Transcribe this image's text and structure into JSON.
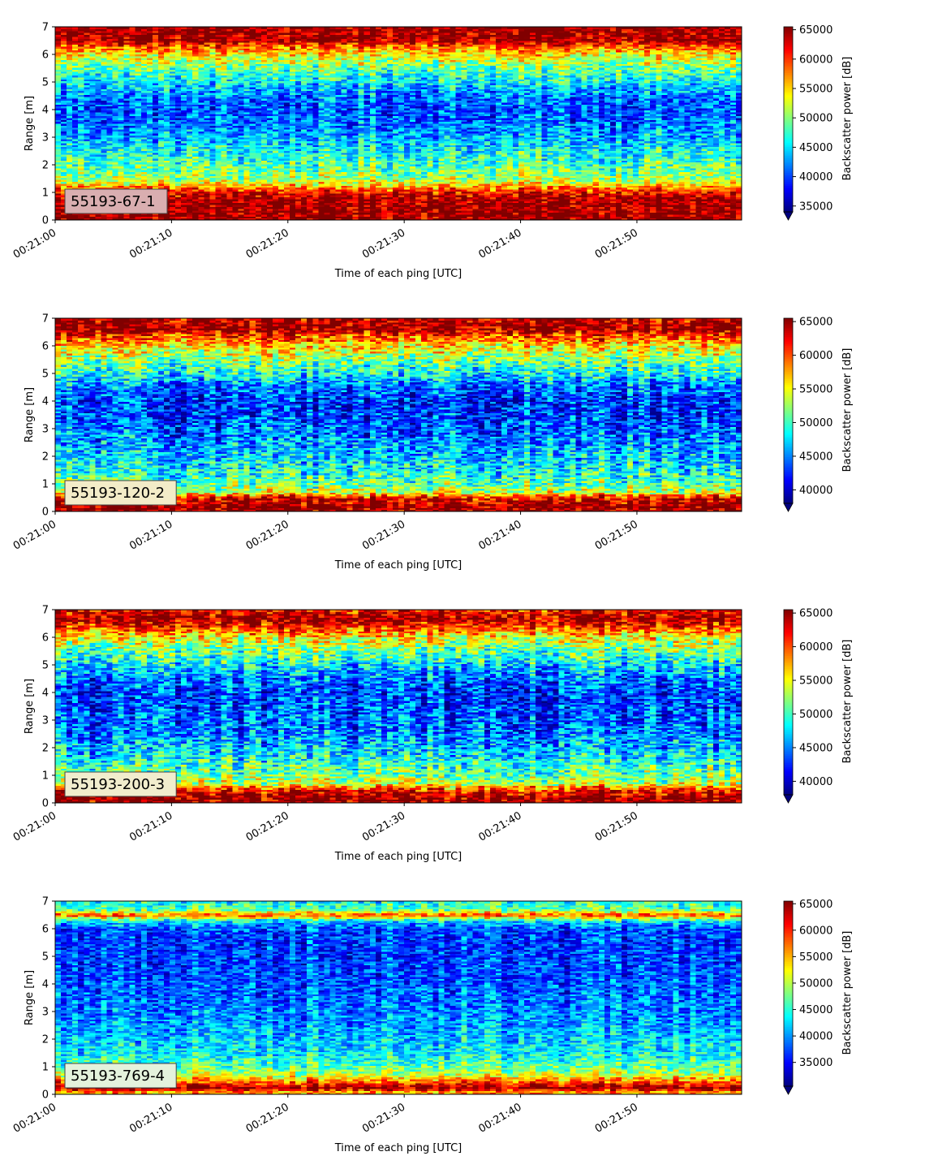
{
  "chart_data": [
    {
      "type": "heatmap",
      "label": "55193-67-1",
      "label_bg": "#d9aeb0",
      "xlabel": "Time of each ping [UTC]",
      "ylabel": "Range [m]",
      "xlim": [
        "00:21:00",
        "00:21:59"
      ],
      "ylim": [
        0,
        7
      ],
      "xticks": [
        "00:21:00",
        "00:21:10",
        "00:21:20",
        "00:21:30",
        "00:21:40",
        "00:21:50"
      ],
      "yticks": [
        0,
        1,
        2,
        3,
        4,
        5,
        6,
        7
      ],
      "colorbar": {
        "label": "Backscatter power [dB]",
        "min": 34000,
        "max": 65500,
        "ticks": [
          35000,
          40000,
          45000,
          50000,
          55000,
          60000,
          65000
        ]
      },
      "profile": [
        {
          "range": 0.2,
          "value": 65000
        },
        {
          "range": 0.5,
          "value": 65000
        },
        {
          "range": 0.8,
          "value": 64500
        },
        {
          "range": 1.0,
          "value": 62000
        },
        {
          "range": 1.2,
          "value": 57000
        },
        {
          "range": 1.5,
          "value": 51000
        },
        {
          "range": 2.0,
          "value": 48500
        },
        {
          "range": 2.5,
          "value": 46000
        },
        {
          "range": 3.0,
          "value": 43500
        },
        {
          "range": 3.5,
          "value": 41500
        },
        {
          "range": 4.0,
          "value": 40500
        },
        {
          "range": 4.5,
          "value": 42000
        },
        {
          "range": 5.0,
          "value": 45500
        },
        {
          "range": 5.5,
          "value": 49000
        },
        {
          "range": 6.0,
          "value": 54000
        },
        {
          "range": 6.3,
          "value": 59000
        },
        {
          "range": 6.5,
          "value": 64500
        },
        {
          "range": 7.0,
          "value": 65000
        }
      ]
    },
    {
      "type": "heatmap",
      "label": "55193-120-2",
      "label_bg": "#f3ecc8",
      "xlabel": "Time of each ping [UTC]",
      "ylabel": "Range [m]",
      "xlim": [
        "00:21:00",
        "00:21:59"
      ],
      "ylim": [
        0,
        7
      ],
      "xticks": [
        "00:21:00",
        "00:21:10",
        "00:21:20",
        "00:21:30",
        "00:21:40",
        "00:21:50"
      ],
      "yticks": [
        0,
        1,
        2,
        3,
        4,
        5,
        6,
        7
      ],
      "colorbar": {
        "label": "Backscatter power [dB]",
        "min": 38000,
        "max": 65500,
        "ticks": [
          40000,
          45000,
          50000,
          55000,
          60000,
          65000
        ]
      },
      "profile": [
        {
          "range": 0.2,
          "value": 65000
        },
        {
          "range": 0.5,
          "value": 63000
        },
        {
          "range": 0.7,
          "value": 54000
        },
        {
          "range": 1.0,
          "value": 51000
        },
        {
          "range": 1.5,
          "value": 48500
        },
        {
          "range": 2.0,
          "value": 47000
        },
        {
          "range": 2.5,
          "value": 45500
        },
        {
          "range": 3.0,
          "value": 44000
        },
        {
          "range": 3.5,
          "value": 43000
        },
        {
          "range": 4.0,
          "value": 42500
        },
        {
          "range": 4.5,
          "value": 44500
        },
        {
          "range": 5.0,
          "value": 48500
        },
        {
          "range": 5.5,
          "value": 52000
        },
        {
          "range": 6.0,
          "value": 56000
        },
        {
          "range": 6.4,
          "value": 61000
        },
        {
          "range": 6.6,
          "value": 65000
        },
        {
          "range": 7.0,
          "value": 64000
        }
      ]
    },
    {
      "type": "heatmap",
      "label": "55193-200-3",
      "label_bg": "#f1edcd",
      "xlabel": "Time of each ping [UTC]",
      "ylabel": "Range [m]",
      "xlim": [
        "00:21:00",
        "00:21:59"
      ],
      "ylim": [
        0,
        7
      ],
      "xticks": [
        "00:21:00",
        "00:21:10",
        "00:21:20",
        "00:21:30",
        "00:21:40",
        "00:21:50"
      ],
      "yticks": [
        0,
        1,
        2,
        3,
        4,
        5,
        6,
        7
      ],
      "colorbar": {
        "label": "Backscatter power [dB]",
        "min": 38000,
        "max": 65500,
        "ticks": [
          40000,
          45000,
          50000,
          55000,
          60000,
          65000
        ]
      },
      "profile": [
        {
          "range": 0.2,
          "value": 65000
        },
        {
          "range": 0.45,
          "value": 62000
        },
        {
          "range": 0.7,
          "value": 54000
        },
        {
          "range": 1.0,
          "value": 51500
        },
        {
          "range": 1.5,
          "value": 49000
        },
        {
          "range": 2.0,
          "value": 46500
        },
        {
          "range": 2.5,
          "value": 45000
        },
        {
          "range": 3.0,
          "value": 44000
        },
        {
          "range": 3.5,
          "value": 43500
        },
        {
          "range": 4.0,
          "value": 43000
        },
        {
          "range": 4.5,
          "value": 44500
        },
        {
          "range": 5.0,
          "value": 47500
        },
        {
          "range": 5.5,
          "value": 51000
        },
        {
          "range": 6.0,
          "value": 55000
        },
        {
          "range": 6.4,
          "value": 61000
        },
        {
          "range": 6.7,
          "value": 65000
        },
        {
          "range": 7.0,
          "value": 62000
        }
      ]
    },
    {
      "type": "heatmap",
      "label": "55193-769-4",
      "label_bg": "#e4f2dc",
      "xlabel": "Time of each ping [UTC]",
      "ylabel": "Range [m]",
      "xlim": [
        "00:21:00",
        "00:21:59"
      ],
      "ylim": [
        0,
        7
      ],
      "xticks": [
        "00:21:00",
        "00:21:10",
        "00:21:20",
        "00:21:30",
        "00:21:40",
        "00:21:50"
      ],
      "yticks": [
        0,
        1,
        2,
        3,
        4,
        5,
        6,
        7
      ],
      "colorbar": {
        "label": "Backscatter power [dB]",
        "min": 30500,
        "max": 65500,
        "ticks": [
          35000,
          40000,
          45000,
          50000,
          55000,
          60000,
          65000
        ]
      },
      "profile": [
        {
          "range": 0.1,
          "value": 56000
        },
        {
          "range": 0.25,
          "value": 65000
        },
        {
          "range": 0.4,
          "value": 60000
        },
        {
          "range": 0.7,
          "value": 51000
        },
        {
          "range": 1.0,
          "value": 47000
        },
        {
          "range": 1.5,
          "value": 43500
        },
        {
          "range": 2.0,
          "value": 42000
        },
        {
          "range": 2.5,
          "value": 40500
        },
        {
          "range": 3.0,
          "value": 39500
        },
        {
          "range": 3.5,
          "value": 38500
        },
        {
          "range": 4.0,
          "value": 38000
        },
        {
          "range": 4.5,
          "value": 37500
        },
        {
          "range": 5.0,
          "value": 37000
        },
        {
          "range": 5.5,
          "value": 37000
        },
        {
          "range": 6.0,
          "value": 37500
        },
        {
          "range": 6.3,
          "value": 43000
        },
        {
          "range": 6.5,
          "value": 59000
        },
        {
          "range": 6.7,
          "value": 47000
        },
        {
          "range": 7.0,
          "value": 44000
        }
      ]
    }
  ]
}
